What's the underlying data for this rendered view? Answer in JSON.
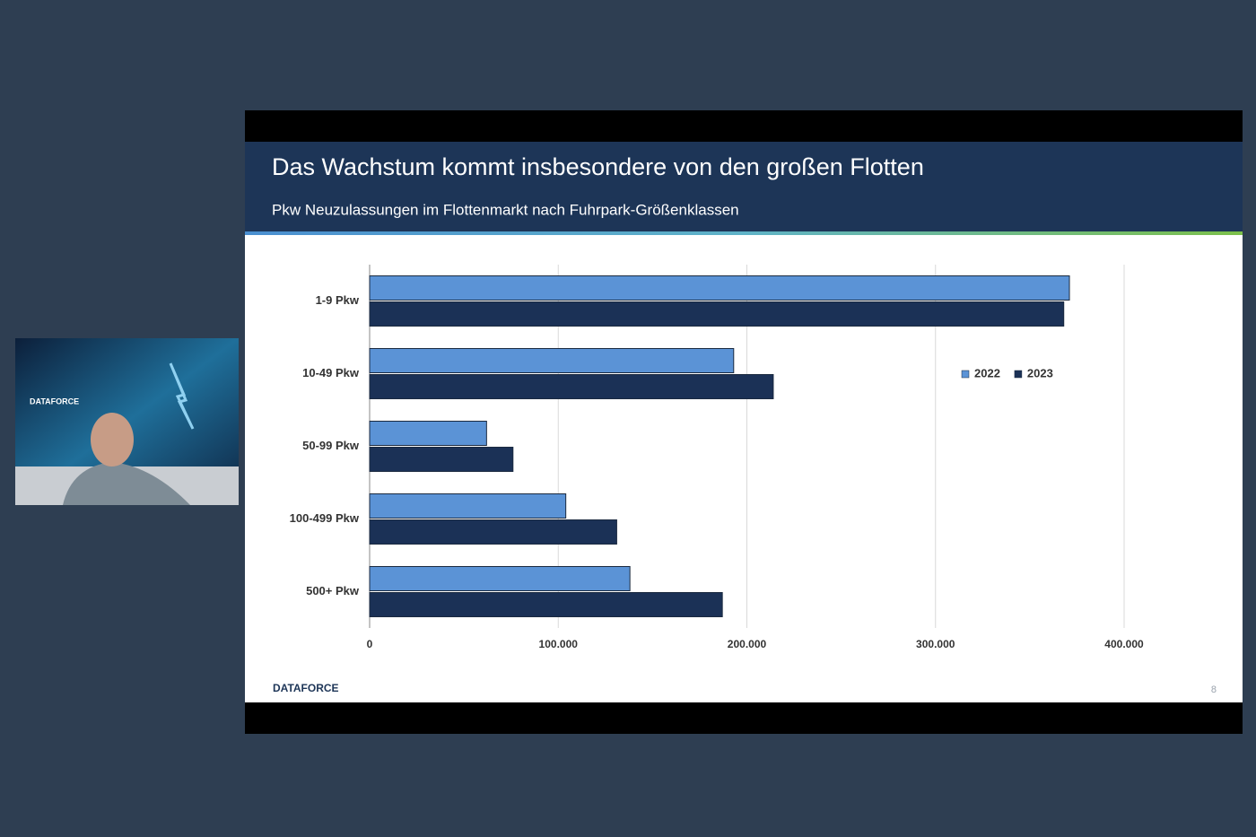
{
  "webcam": {
    "logo": "DATAFORCE"
  },
  "slide": {
    "title": "Das Wachstum kommt insbesondere von den großen Flotten",
    "subtitle": "Pkw Neuzulassungen im Flottenmarkt nach Fuhrpark-Größenklassen",
    "logo": "DATAFORCE",
    "page_number": 8
  },
  "chart_data": {
    "type": "barh",
    "categories": [
      "1-9 Pkw",
      "10-49 Pkw",
      "50-99 Pkw",
      "100-499 Pkw",
      "500+ Pkw"
    ],
    "series": [
      {
        "name": "2022",
        "color": "#5b93d6",
        "values": [
          371000,
          193000,
          62000,
          104000,
          138000
        ]
      },
      {
        "name": "2023",
        "color": "#1b3156",
        "values": [
          368000,
          214000,
          76000,
          131000,
          187000
        ]
      }
    ],
    "xlim": [
      0,
      400000
    ],
    "xticks": [
      0,
      {
        "value": 100000,
        "label": "100.000"
      },
      {
        "value": 200000,
        "label": "200.000"
      },
      {
        "value": 300000,
        "label": "300.000"
      },
      {
        "value": 400000,
        "label": "400.000"
      }
    ],
    "grid": true,
    "legend": "right"
  }
}
